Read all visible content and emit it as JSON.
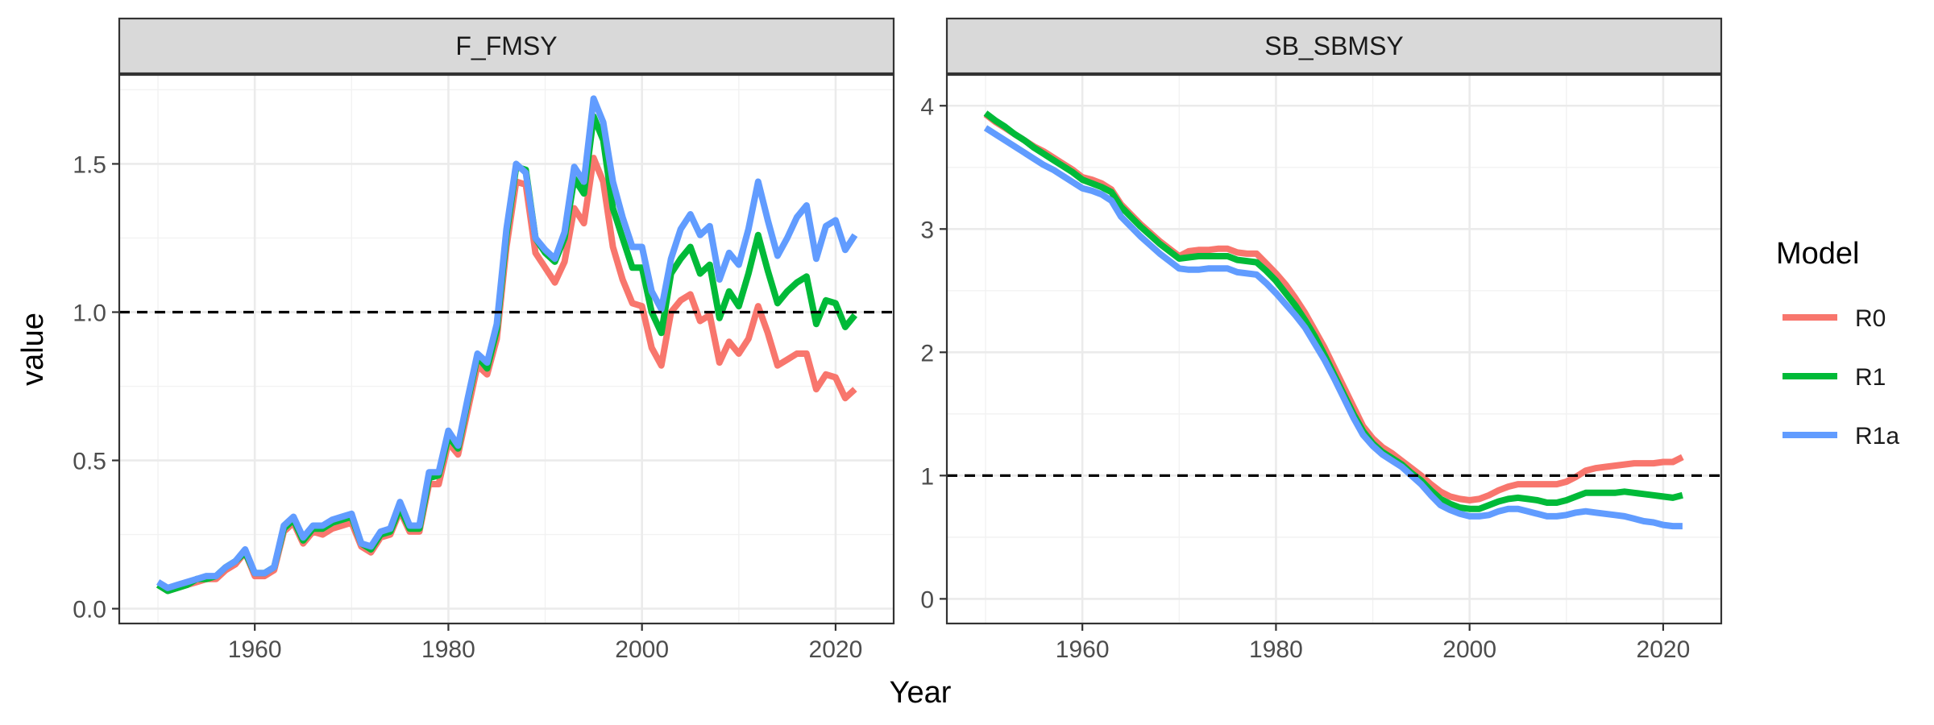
{
  "chart_data": {
    "type": "line",
    "xlabel": "Year",
    "ylabel": "value",
    "legend": {
      "title": "Model",
      "placement": "right",
      "entries": [
        {
          "label": "R0",
          "color": "#F8766D"
        },
        {
          "label": "R1",
          "color": "#00BA38"
        },
        {
          "label": "R1a",
          "color": "#619CFF"
        }
      ]
    },
    "panels": [
      {
        "title": "F_FMSY",
        "xlim": [
          1946,
          2026
        ],
        "ylim": [
          -0.05,
          1.8
        ],
        "x_ticks": [
          1960,
          1980,
          2000,
          2020
        ],
        "x_tick_labels": [
          "1960",
          "1980",
          "2000",
          "2020"
        ],
        "y_ticks": [
          0,
          0.5,
          1,
          1.5
        ],
        "y_tick_labels": [
          "0.0",
          "0.5",
          "1.0",
          "1.5"
        ],
        "reference_line": 1.0,
        "x": [
          1950,
          1951,
          1952,
          1953,
          1954,
          1955,
          1956,
          1957,
          1958,
          1959,
          1960,
          1961,
          1962,
          1963,
          1964,
          1965,
          1966,
          1967,
          1968,
          1969,
          1970,
          1971,
          1972,
          1973,
          1974,
          1975,
          1976,
          1977,
          1978,
          1979,
          1980,
          1981,
          1982,
          1983,
          1984,
          1985,
          1986,
          1987,
          1988,
          1989,
          1990,
          1991,
          1992,
          1993,
          1994,
          1995,
          1996,
          1997,
          1998,
          1999,
          2000,
          2001,
          2002,
          2003,
          2004,
          2005,
          2006,
          2007,
          2008,
          2009,
          2010,
          2011,
          2012,
          2013,
          2014,
          2015,
          2016,
          2017,
          2018,
          2019,
          2020,
          2021,
          2022
        ],
        "series": [
          {
            "name": "R0",
            "values": [
              0.08,
              0.06,
              0.07,
              0.08,
              0.09,
              0.1,
              0.1,
              0.13,
              0.15,
              0.19,
              0.11,
              0.11,
              0.13,
              0.26,
              0.29,
              0.22,
              0.26,
              0.25,
              0.27,
              0.28,
              0.29,
              0.21,
              0.19,
              0.24,
              0.25,
              0.33,
              0.26,
              0.26,
              0.42,
              0.42,
              0.56,
              0.52,
              0.67,
              0.82,
              0.79,
              0.91,
              1.22,
              1.44,
              1.43,
              1.2,
              1.15,
              1.1,
              1.17,
              1.35,
              1.3,
              1.52,
              1.44,
              1.22,
              1.11,
              1.03,
              1.02,
              0.88,
              0.82,
              1.0,
              1.04,
              1.06,
              0.97,
              0.99,
              0.83,
              0.9,
              0.86,
              0.91,
              1.02,
              0.93,
              0.82,
              0.84,
              0.86,
              0.86,
              0.74,
              0.79,
              0.78,
              0.71,
              0.74
            ]
          },
          {
            "name": "R1",
            "values": [
              0.08,
              0.06,
              0.07,
              0.08,
              0.1,
              0.1,
              0.11,
              0.14,
              0.16,
              0.19,
              0.12,
              0.12,
              0.14,
              0.27,
              0.3,
              0.23,
              0.27,
              0.27,
              0.29,
              0.3,
              0.31,
              0.22,
              0.2,
              0.25,
              0.26,
              0.34,
              0.27,
              0.27,
              0.44,
              0.45,
              0.58,
              0.54,
              0.7,
              0.85,
              0.81,
              0.94,
              1.26,
              1.49,
              1.48,
              1.25,
              1.2,
              1.17,
              1.25,
              1.45,
              1.4,
              1.66,
              1.58,
              1.35,
              1.25,
              1.15,
              1.15,
              1.0,
              0.93,
              1.13,
              1.18,
              1.22,
              1.13,
              1.16,
              0.98,
              1.07,
              1.02,
              1.13,
              1.26,
              1.14,
              1.03,
              1.07,
              1.1,
              1.12,
              0.96,
              1.04,
              1.03,
              0.95,
              0.99
            ]
          },
          {
            "name": "R1a",
            "values": [
              0.09,
              0.07,
              0.08,
              0.09,
              0.1,
              0.11,
              0.11,
              0.14,
              0.16,
              0.2,
              0.12,
              0.12,
              0.14,
              0.28,
              0.31,
              0.24,
              0.28,
              0.28,
              0.3,
              0.31,
              0.32,
              0.22,
              0.21,
              0.26,
              0.27,
              0.36,
              0.28,
              0.28,
              0.46,
              0.46,
              0.6,
              0.55,
              0.71,
              0.86,
              0.83,
              0.96,
              1.28,
              1.5,
              1.47,
              1.25,
              1.21,
              1.18,
              1.27,
              1.49,
              1.44,
              1.72,
              1.64,
              1.44,
              1.32,
              1.22,
              1.22,
              1.07,
              1.01,
              1.18,
              1.28,
              1.33,
              1.26,
              1.29,
              1.11,
              1.2,
              1.16,
              1.28,
              1.44,
              1.31,
              1.19,
              1.25,
              1.32,
              1.36,
              1.18,
              1.29,
              1.31,
              1.21,
              1.26
            ]
          }
        ]
      },
      {
        "title": "SB_SBMSY",
        "xlim": [
          1946,
          2026
        ],
        "ylim": [
          -0.2,
          4.25
        ],
        "x_ticks": [
          1960,
          1980,
          2000,
          2020
        ],
        "x_tick_labels": [
          "1960",
          "1980",
          "2000",
          "2020"
        ],
        "y_ticks": [
          0,
          1,
          2,
          3,
          4
        ],
        "y_tick_labels": [
          "0",
          "1",
          "2",
          "3",
          "4"
        ],
        "reference_line": 1.0,
        "x": [
          1950,
          1951,
          1952,
          1953,
          1954,
          1955,
          1956,
          1957,
          1958,
          1959,
          1960,
          1961,
          1962,
          1963,
          1964,
          1965,
          1966,
          1967,
          1968,
          1969,
          1970,
          1971,
          1972,
          1973,
          1974,
          1975,
          1976,
          1977,
          1978,
          1979,
          1980,
          1981,
          1982,
          1983,
          1984,
          1985,
          1986,
          1987,
          1988,
          1989,
          1990,
          1991,
          1992,
          1993,
          1994,
          1995,
          1996,
          1997,
          1998,
          1999,
          2000,
          2001,
          2002,
          2003,
          2004,
          2005,
          2006,
          2007,
          2008,
          2009,
          2010,
          2011,
          2012,
          2013,
          2014,
          2015,
          2016,
          2017,
          2018,
          2019,
          2020,
          2021,
          2022
        ],
        "series": [
          {
            "name": "R0",
            "values": [
              3.93,
              3.87,
              3.82,
              3.77,
              3.72,
              3.67,
              3.63,
              3.58,
              3.53,
              3.48,
              3.42,
              3.4,
              3.37,
              3.32,
              3.2,
              3.12,
              3.04,
              2.97,
              2.9,
              2.84,
              2.78,
              2.82,
              2.83,
              2.83,
              2.84,
              2.84,
              2.81,
              2.8,
              2.8,
              2.72,
              2.64,
              2.55,
              2.44,
              2.32,
              2.18,
              2.04,
              1.88,
              1.72,
              1.56,
              1.4,
              1.3,
              1.23,
              1.18,
              1.12,
              1.06,
              1.0,
              0.93,
              0.87,
              0.83,
              0.81,
              0.8,
              0.81,
              0.84,
              0.88,
              0.91,
              0.93,
              0.93,
              0.93,
              0.93,
              0.93,
              0.95,
              0.99,
              1.04,
              1.06,
              1.07,
              1.08,
              1.09,
              1.1,
              1.1,
              1.1,
              1.11,
              1.11,
              1.15
            ]
          },
          {
            "name": "R1",
            "values": [
              3.94,
              3.88,
              3.83,
              3.77,
              3.72,
              3.66,
              3.61,
              3.56,
              3.51,
              3.46,
              3.4,
              3.37,
              3.34,
              3.3,
              3.18,
              3.1,
              3.02,
              2.95,
              2.88,
              2.82,
              2.76,
              2.77,
              2.78,
              2.78,
              2.78,
              2.78,
              2.75,
              2.74,
              2.73,
              2.66,
              2.58,
              2.48,
              2.38,
              2.26,
              2.13,
              1.98,
              1.82,
              1.66,
              1.5,
              1.36,
              1.26,
              1.19,
              1.14,
              1.09,
              1.02,
              0.96,
              0.88,
              0.81,
              0.77,
              0.74,
              0.73,
              0.73,
              0.76,
              0.79,
              0.81,
              0.82,
              0.81,
              0.8,
              0.78,
              0.78,
              0.8,
              0.83,
              0.86,
              0.86,
              0.86,
              0.86,
              0.87,
              0.86,
              0.85,
              0.84,
              0.83,
              0.82,
              0.84
            ]
          },
          {
            "name": "R1a",
            "values": [
              3.82,
              3.77,
              3.72,
              3.67,
              3.62,
              3.57,
              3.52,
              3.48,
              3.43,
              3.38,
              3.33,
              3.31,
              3.28,
              3.23,
              3.1,
              3.02,
              2.94,
              2.87,
              2.8,
              2.74,
              2.68,
              2.67,
              2.67,
              2.68,
              2.68,
              2.68,
              2.65,
              2.64,
              2.63,
              2.56,
              2.48,
              2.39,
              2.3,
              2.2,
              2.07,
              1.94,
              1.79,
              1.63,
              1.47,
              1.33,
              1.24,
              1.17,
              1.12,
              1.07,
              1.0,
              0.93,
              0.84,
              0.76,
              0.72,
              0.69,
              0.67,
              0.67,
              0.68,
              0.71,
              0.73,
              0.73,
              0.71,
              0.69,
              0.67,
              0.67,
              0.68,
              0.7,
              0.71,
              0.7,
              0.69,
              0.68,
              0.67,
              0.65,
              0.63,
              0.62,
              0.6,
              0.59,
              0.59
            ]
          }
        ]
      }
    ]
  }
}
